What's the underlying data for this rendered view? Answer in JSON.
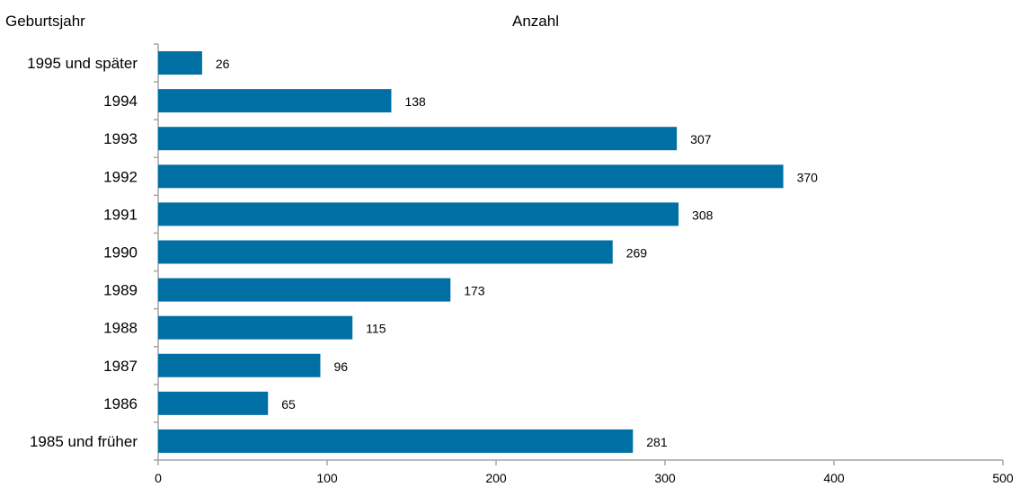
{
  "chart_data": {
    "type": "bar",
    "orientation": "horizontal",
    "title": "",
    "ylabel": "Geburtsjahr",
    "xlabel": "Anzahl",
    "categories": [
      "1995 und später",
      "1994",
      "1993",
      "1992",
      "1991",
      "1990",
      "1989",
      "1988",
      "1987",
      "1986",
      "1985 und früher"
    ],
    "values": [
      26,
      138,
      307,
      370,
      308,
      269,
      173,
      115,
      96,
      65,
      281
    ],
    "xlim": [
      0,
      500
    ],
    "xticks": [
      0,
      100,
      200,
      300,
      400,
      500
    ],
    "grid": false,
    "legend": "none",
    "bar_color": "#0070a4"
  }
}
